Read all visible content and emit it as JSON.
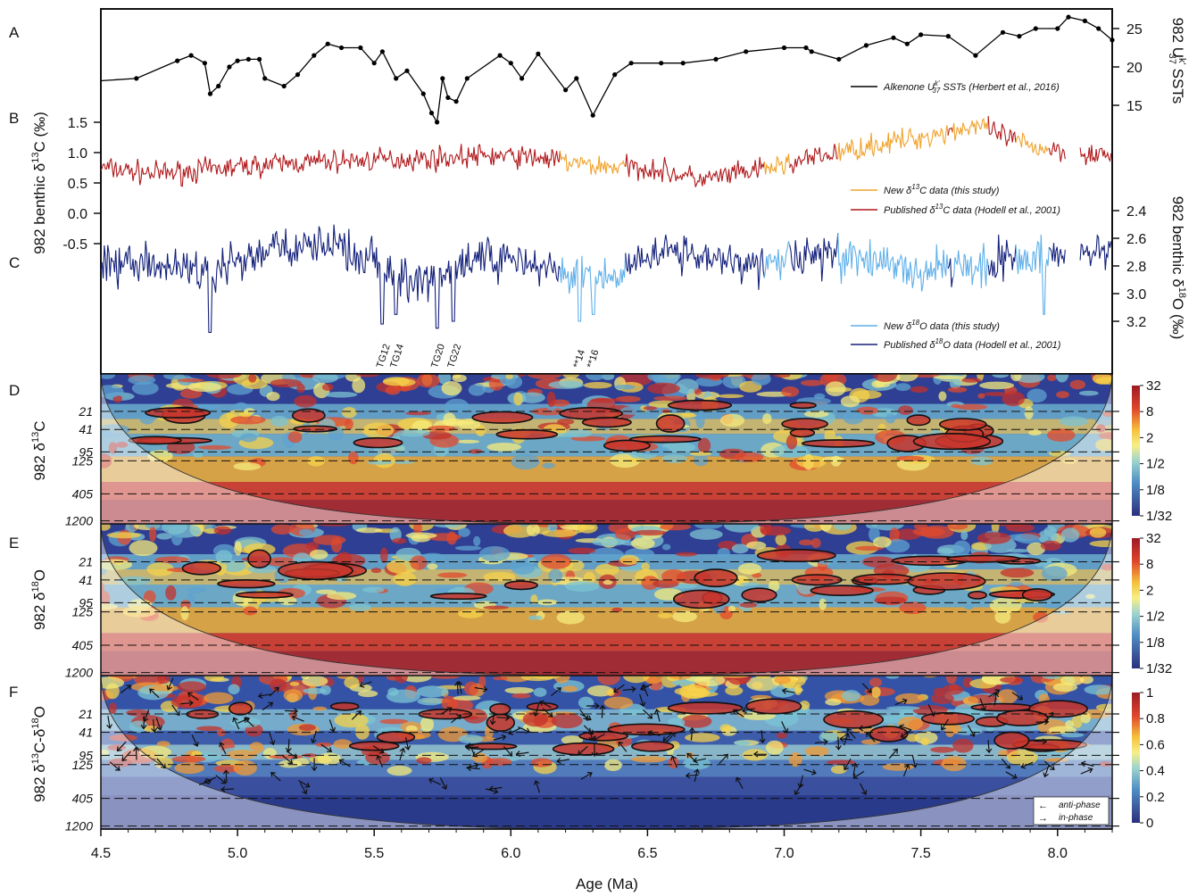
{
  "chart_data": {
    "type": "line",
    "x_axis": {
      "label": "Age (Ma)",
      "range": [
        4.5,
        8.2
      ],
      "ticks": [
        4.5,
        5.0,
        5.5,
        6.0,
        6.5,
        7.0,
        7.5,
        8.0
      ],
      "tick_labels": [
        "4.5",
        "5.0",
        "5.5",
        "6.0",
        "6.5",
        "7.0",
        "7.5",
        "8.0"
      ]
    },
    "panels": [
      {
        "letter": "A",
        "ylabel": "982 U",
        "ylabel_sup": "k'",
        "ylabel_sub": "37",
        "ylabel_tail": " SSTs",
        "ylim": [
          12,
          27
        ],
        "yticks": [
          "15",
          "20",
          "25"
        ],
        "series": [
          {
            "name": "Alkenone U",
            "name_sup": "k'",
            "name_sub": "37",
            "name_tail": " SSTs (Herbert et al., 2016)",
            "color": "#000000",
            "x": [
              4.5,
              4.63,
              4.78,
              4.83,
              4.88,
              4.9,
              4.93,
              4.97,
              5.0,
              5.04,
              5.08,
              5.1,
              5.17,
              5.22,
              5.28,
              5.33,
              5.38,
              5.45,
              5.5,
              5.53,
              5.58,
              5.62,
              5.68,
              5.71,
              5.73,
              5.75,
              5.77,
              5.8,
              5.84,
              5.96,
              6.0,
              6.04,
              6.1,
              6.2,
              6.24,
              6.3,
              6.38,
              6.44,
              6.55,
              6.63,
              6.75,
              6.86,
              7.0,
              7.08,
              7.1,
              7.2,
              7.3,
              7.4,
              7.45,
              7.5,
              7.6,
              7.7,
              7.8,
              7.86,
              7.92,
              8.0,
              8.04,
              8.1,
              8.15,
              8.2
            ],
            "y": [
              18.2,
              18.5,
              20.8,
              21.5,
              20.5,
              16.5,
              17.5,
              20.0,
              20.8,
              21.0,
              21.0,
              18.5,
              17.5,
              19.0,
              21.5,
              23.0,
              22.5,
              22.5,
              20.5,
              22.0,
              18.5,
              19.5,
              16.5,
              14.0,
              12.8,
              18.5,
              16.0,
              15.5,
              18.5,
              21.5,
              20.5,
              18.5,
              21.7,
              17.0,
              18.5,
              13.7,
              19.0,
              20.5,
              20.5,
              20.5,
              21.0,
              22.0,
              22.5,
              22.5,
              22.0,
              21.0,
              22.8,
              23.8,
              23.0,
              24.2,
              24.0,
              21.5,
              24.5,
              24.0,
              25.0,
              25.0,
              26.5,
              26.0,
              25.0,
              23.5
            ]
          }
        ]
      },
      {
        "letter": "B",
        "ylabel": "982 benthic δ",
        "ylabel_sup": "13",
        "ylabel_tail": "C (‰)",
        "ylim": [
          -0.5,
          1.5
        ],
        "yticks": [
          "1.5",
          "1.0",
          "0.5",
          "0.0",
          "-0.5"
        ],
        "series": [
          {
            "name": "New δ",
            "name_sup": "13",
            "name_tail": "C data (this study)",
            "color": "#f0a22b"
          },
          {
            "name": "Published δ",
            "name_sup": "13",
            "name_tail": "C data (Hodell et al., 2001)",
            "color": "#b0181b"
          }
        ],
        "trend_x": [
          4.5,
          4.7,
          4.9,
          5.1,
          5.3,
          5.5,
          5.7,
          5.9,
          6.1,
          6.3,
          6.5,
          6.7,
          6.9,
          7.1,
          7.3,
          7.5,
          7.7,
          7.9,
          8.1,
          8.2
        ],
        "trend_y": [
          0.75,
          0.65,
          0.72,
          0.8,
          0.85,
          0.88,
          0.9,
          0.95,
          0.92,
          0.78,
          0.75,
          0.55,
          0.7,
          0.9,
          1.1,
          1.25,
          1.45,
          1.1,
          1.0,
          0.95
        ]
      },
      {
        "letter": "C",
        "ylabel": "982 benthic δ",
        "ylabel_sup": "18",
        "ylabel_tail": "O (‰)",
        "ylim": [
          2.2,
          3.4
        ],
        "yticks": [
          "2.4",
          "2.6",
          "2.8",
          "3.0",
          "3.2"
        ],
        "series": [
          {
            "name": "New δ",
            "name_sup": "18",
            "name_tail": "O data (this study)",
            "color": "#5fb0ea"
          },
          {
            "name": "Published δ",
            "name_sup": "18",
            "name_tail": "O data (Hodell et al., 2001)",
            "color": "#13207a"
          }
        ],
        "trend_x": [
          4.5,
          4.7,
          4.9,
          5.1,
          5.3,
          5.5,
          5.6,
          5.75,
          5.9,
          6.1,
          6.3,
          6.5,
          6.7,
          6.9,
          7.1,
          7.3,
          7.5,
          7.7,
          7.9,
          8.1,
          8.2
        ],
        "trend_y": [
          2.75,
          2.8,
          2.85,
          2.7,
          2.65,
          2.75,
          2.9,
          2.85,
          2.72,
          2.8,
          2.9,
          2.75,
          2.7,
          2.8,
          2.7,
          2.75,
          2.85,
          2.8,
          2.75,
          2.7,
          2.65
        ],
        "events": [
          {
            "label": "TG12",
            "x": 5.53
          },
          {
            "label": "TG14",
            "x": 5.58
          },
          {
            "label": "TG20",
            "x": 5.73
          },
          {
            "label": "TG22",
            "x": 5.79
          },
          {
            "label": "**14",
            "x": 6.25
          },
          {
            "label": "**16",
            "x": 6.3
          }
        ]
      },
      {
        "letter": "D",
        "type": "heatmap",
        "ylabel": "982 δ",
        "ylabel_sup": "13",
        "ylabel_tail": "C",
        "period_ticks": [
          "21",
          "41",
          "95",
          "125",
          "405",
          "1200"
        ],
        "colorbar_ticks": [
          "32",
          "8",
          "2",
          "1/2",
          "1/8",
          "1/32"
        ]
      },
      {
        "letter": "E",
        "type": "heatmap",
        "ylabel": "982 δ",
        "ylabel_sup": "18",
        "ylabel_tail": "O",
        "period_ticks": [
          "21",
          "41",
          "95",
          "125",
          "405",
          "1200"
        ],
        "colorbar_ticks": [
          "32",
          "8",
          "2",
          "1/2",
          "1/8",
          "1/32"
        ]
      },
      {
        "letter": "F",
        "type": "heatmap",
        "ylabel": "982 δ",
        "ylabel_sup": "13",
        "ylabel_tail": "C-δ",
        "ylabel_sup2": "18",
        "ylabel_tail2": "O",
        "period_ticks": [
          "21",
          "41",
          "95",
          "125",
          "405",
          "1200"
        ],
        "colorbar_ticks": [
          "1",
          "0.8",
          "0.6",
          "0.4",
          "0.2",
          "0"
        ],
        "legend": [
          {
            "symbol": "←",
            "label": "anti-phase"
          },
          {
            "symbol": "→",
            "label": "in-phase"
          }
        ]
      }
    ]
  }
}
